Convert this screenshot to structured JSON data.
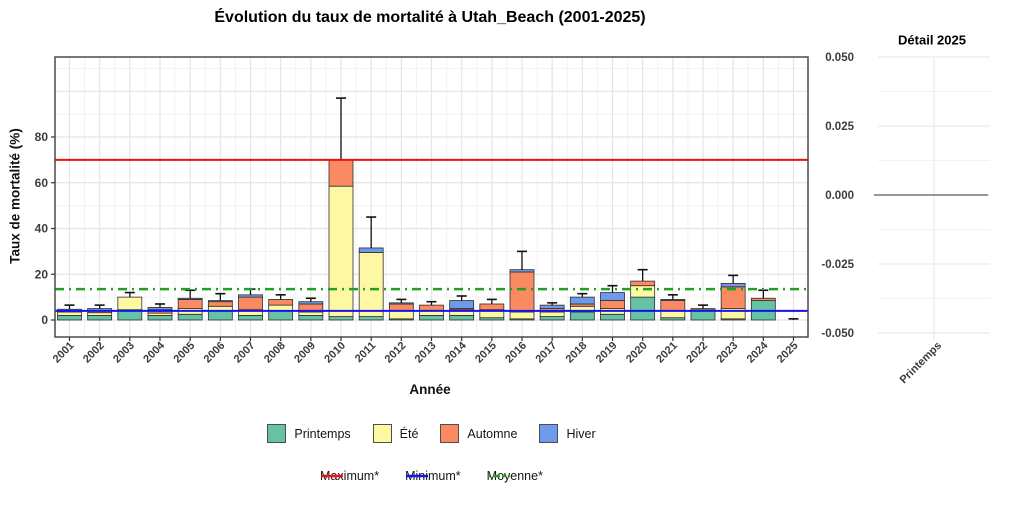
{
  "chart_data": [
    {
      "type": "bar",
      "stacked": true,
      "title": "Évolution du taux de mortalité à Utah_Beach (2001-2025)",
      "xlabel": "Année",
      "ylabel": "Taux de mortalité (%)",
      "ylim": [
        0,
        115
      ],
      "ytick_labels": [
        "0",
        "20",
        "40",
        "60",
        "80"
      ],
      "yticks": [
        0,
        20,
        40,
        60,
        80
      ],
      "grid": true,
      "legend_position": "bottom",
      "categories": [
        "2001",
        "2002",
        "2003",
        "2004",
        "2005",
        "2006",
        "2007",
        "2008",
        "2009",
        "2010",
        "2011",
        "2012",
        "2013",
        "2014",
        "2015",
        "2016",
        "2017",
        "2018",
        "2019",
        "2020",
        "2021",
        "2022",
        "2023",
        "2024",
        "2025"
      ],
      "series": [
        {
          "name": "Printemps",
          "color": "#66C2A5",
          "values": [
            2,
            2,
            4.5,
            2,
            2.5,
            4,
            2,
            4,
            2,
            1.5,
            1.5,
            0.5,
            2,
            2,
            1,
            0.5,
            1.5,
            3.5,
            2.5,
            10,
            1,
            4.5,
            0.5,
            8.5,
            0
          ]
        },
        {
          "name": "Été",
          "color": "#FFF8A3",
          "values": [
            1.5,
            1.2,
            5.5,
            1,
            2.5,
            2,
            2.5,
            2.5,
            1.5,
            57,
            28,
            3.5,
            2,
            2.5,
            3.5,
            3,
            2,
            2.5,
            2.5,
            5,
            3,
            0.5,
            4.5,
            0,
            0
          ]
        },
        {
          "name": "Automne",
          "color": "#FA8A62",
          "values": [
            0.7,
            0.8,
            0,
            1.5,
            4,
            2,
            5.5,
            2.5,
            3.5,
            11.5,
            0,
            3,
            2.5,
            0.5,
            2.5,
            17.5,
            1.5,
            1,
            3.5,
            2,
            4.5,
            0,
            9.5,
            1,
            0
          ]
        },
        {
          "name": "Hiver",
          "color": "#6D9AEB",
          "values": [
            0.5,
            1,
            0,
            1,
            0.5,
            0.5,
            1,
            0,
            1,
            0,
            2,
            0.5,
            0,
            3.5,
            0,
            1,
            1.5,
            3,
            3.5,
            0,
            0.5,
            0,
            1.5,
            0,
            0
          ]
        }
      ],
      "error_upper": [
        6.5,
        6.5,
        12,
        7,
        13,
        11.5,
        13.5,
        11,
        9.5,
        97,
        45,
        9,
        8,
        10.5,
        9,
        30,
        7.5,
        11.5,
        15,
        22,
        11,
        6.5,
        19.5,
        13,
        0.5
      ],
      "ref_lines": [
        {
          "name": "Maximum*",
          "value": 70,
          "color": "#EE1111",
          "style": "solid"
        },
        {
          "name": "Minimum*",
          "value": 4,
          "color": "#1414E8",
          "style": "solid"
        },
        {
          "name": "Moyenne*",
          "value": 13.5,
          "color": "#22A022",
          "style": "dashdot"
        }
      ]
    },
    {
      "type": "bar",
      "title": "Détail 2025",
      "categories": [
        "Printemps"
      ],
      "values": [
        0
      ],
      "ylim": [
        -0.05,
        0.05
      ],
      "yticks": [
        0.05,
        0.025,
        0,
        -0.025,
        -0.05
      ],
      "ytick_labels": [
        "0.050",
        "0.025",
        "0.000",
        "-0.025",
        "-0.050"
      ],
      "zero_line": true,
      "grid": true
    }
  ],
  "legend": {
    "seasons": [
      {
        "label": "Printemps",
        "color": "#66C2A5"
      },
      {
        "label": "Été",
        "color": "#FFF8A3"
      },
      {
        "label": "Automne",
        "color": "#FA8A62"
      },
      {
        "label": "Hiver",
        "color": "#6D9AEB"
      }
    ],
    "lines": [
      {
        "label": "Maximum*",
        "color": "#EE1111",
        "dash": ""
      },
      {
        "label": "Minimum*",
        "color": "#1414E8",
        "dash": ""
      },
      {
        "label": "Moyenne*",
        "color": "#22A022",
        "dash": "2 3 7 3"
      }
    ]
  },
  "colors": {
    "grid_major": "#e4e4e4",
    "grid_minor": "#f2f2f2",
    "panel_border": "#4a4a4a",
    "tick_text": "#3c3c3c",
    "error_bar": "#111111",
    "zero_line": "#777777"
  }
}
